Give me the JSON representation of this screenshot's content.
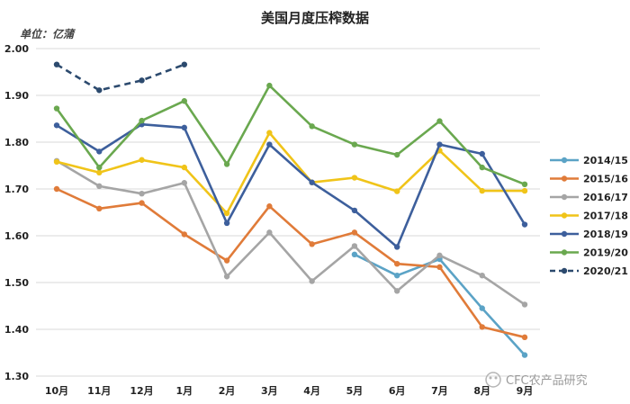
{
  "chart_data": {
    "type": "line",
    "title": "美国月度压榨数据",
    "unit_label": "单位：亿蒲",
    "xlabel": "",
    "ylabel": "",
    "categories": [
      "10月",
      "11月",
      "12月",
      "1月",
      "2月",
      "3月",
      "4月",
      "5月",
      "6月",
      "7月",
      "8月",
      "9月"
    ],
    "ylim": [
      1.3,
      2.0
    ],
    "yticks": [
      "1.30",
      "1.40",
      "1.50",
      "1.60",
      "1.70",
      "1.80",
      "1.90",
      "2.00"
    ],
    "grid": true,
    "legend_position": "right",
    "series": [
      {
        "name": "2014/15",
        "color": "#5ba3c6",
        "dashed": false,
        "values": [
          null,
          null,
          null,
          null,
          null,
          null,
          null,
          1.56,
          1.515,
          1.55,
          1.445,
          1.345
        ]
      },
      {
        "name": "2015/16",
        "color": "#e07b39",
        "dashed": false,
        "values": [
          1.7,
          1.658,
          1.67,
          1.603,
          1.547,
          1.663,
          1.582,
          1.607,
          1.54,
          1.533,
          1.405,
          1.383
        ]
      },
      {
        "name": "2016/17",
        "color": "#a5a5a5",
        "dashed": false,
        "values": [
          1.76,
          1.706,
          1.69,
          1.713,
          1.513,
          1.607,
          1.503,
          1.578,
          1.482,
          1.558,
          1.515,
          1.453
        ]
      },
      {
        "name": "2017/18",
        "color": "#f0c419",
        "dashed": false,
        "values": [
          1.758,
          1.735,
          1.762,
          1.746,
          1.648,
          1.82,
          1.714,
          1.724,
          1.695,
          1.782,
          1.696,
          1.696
        ]
      },
      {
        "name": "2018/19",
        "color": "#3d5f9c",
        "dashed": false,
        "values": [
          1.836,
          1.78,
          1.838,
          1.831,
          1.627,
          1.795,
          1.714,
          1.654,
          1.576,
          1.795,
          1.775,
          1.624
        ]
      },
      {
        "name": "2019/20",
        "color": "#6aa84f",
        "dashed": false,
        "values": [
          1.872,
          1.746,
          1.846,
          1.888,
          1.753,
          1.921,
          1.834,
          1.795,
          1.773,
          1.845,
          1.746,
          1.71
        ]
      },
      {
        "name": "2020/21",
        "color": "#2c4a6e",
        "dashed": true,
        "values": [
          1.966,
          1.911,
          1.932,
          1.966,
          null,
          null,
          null,
          null,
          null,
          null,
          null,
          null
        ]
      }
    ]
  },
  "watermark": "CFC农产品研究"
}
